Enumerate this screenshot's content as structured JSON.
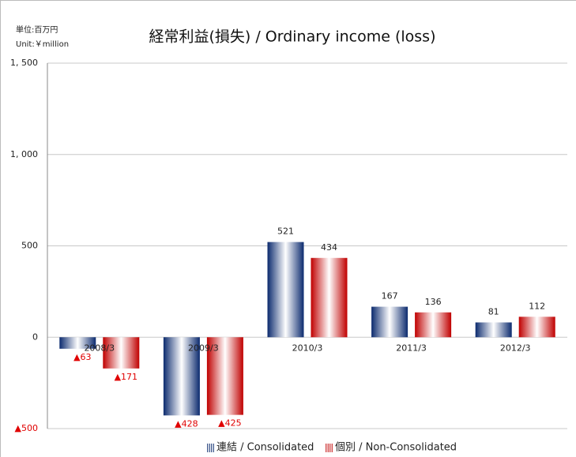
{
  "chart_data": {
    "type": "bar",
    "title": "経常利益(損失) / Ordinary income (loss)",
    "unit_ja": "単位:百万円",
    "unit_en": "Unit:￥million",
    "categories": [
      "2008/3",
      "2009/3",
      "2010/3",
      "2011/3",
      "2012/3"
    ],
    "series": [
      {
        "name": "連結 / Consolidated",
        "color": "#0b2a6e",
        "values": [
          -63,
          -428,
          521,
          167,
          81
        ],
        "value_labels": [
          "▲63",
          "▲428",
          "521",
          "167",
          "81"
        ]
      },
      {
        "name": "個別 / Non-Consolidated",
        "color": "#c00000",
        "values": [
          -171,
          -425,
          434,
          136,
          112
        ],
        "value_labels": [
          "▲171",
          "▲425",
          "434",
          "136",
          "112"
        ]
      }
    ],
    "ylim": [
      -500,
      1500
    ],
    "yticks": [
      {
        "value": -500,
        "label": "▲500"
      },
      0,
      500,
      {
        "value": 1000,
        "label": "1, 000"
      },
      {
        "value": 1500,
        "label": "1, 500"
      }
    ],
    "grid": true,
    "legend": "bottom"
  }
}
